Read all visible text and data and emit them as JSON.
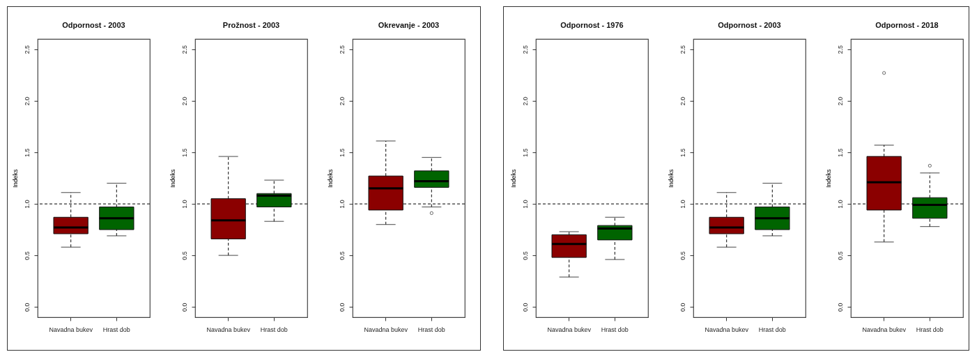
{
  "chart_data": [
    {
      "type": "box",
      "title": "Odpornost - 2003",
      "ylabel": "Indeks",
      "categories": [
        "Navadna bukev",
        "Hrast dob"
      ],
      "colors": [
        "#8b0000",
        "#006400"
      ],
      "boxes": [
        {
          "low": 0.58,
          "q1": 0.71,
          "median": 0.77,
          "q3": 0.87,
          "high": 1.11
        },
        {
          "low": 0.69,
          "q1": 0.75,
          "median": 0.86,
          "q3": 0.97,
          "high": 1.2
        }
      ],
      "ylim": [
        -0.1,
        2.6
      ],
      "yticks": [
        {
          "value": 0,
          "label": "0.0"
        },
        {
          "value": 0.5,
          "label": "0.5"
        },
        {
          "value": 1,
          "label": "1.0"
        },
        {
          "value": 1.5,
          "label": "1.5"
        },
        {
          "value": 2,
          "label": "2.0"
        },
        {
          "value": 2.5,
          "label": "2.5"
        }
      ],
      "ref_lines": [
        {
          "axis": "y",
          "value": 1,
          "line_style": "dashed"
        }
      ]
    },
    {
      "type": "box",
      "title": "Prožnost - 2003",
      "ylabel": "Indeks",
      "categories": [
        "Navadna bukev",
        "Hrast dob"
      ],
      "colors": [
        "#8b0000",
        "#006400"
      ],
      "boxes": [
        {
          "low": 0.5,
          "q1": 0.66,
          "median": 0.84,
          "q3": 1.05,
          "high": 1.46
        },
        {
          "low": 0.83,
          "q1": 0.97,
          "median": 1.08,
          "q3": 1.1,
          "high": 1.23
        }
      ],
      "ylim": [
        -0.1,
        2.6
      ],
      "yticks": [
        {
          "value": 0,
          "label": "0.0"
        },
        {
          "value": 0.5,
          "label": "0.5"
        },
        {
          "value": 1,
          "label": "1.0"
        },
        {
          "value": 1.5,
          "label": "1.5"
        },
        {
          "value": 2,
          "label": "2.0"
        },
        {
          "value": 2.5,
          "label": "2.5"
        }
      ],
      "ref_lines": [
        {
          "axis": "y",
          "value": 1,
          "line_style": "dashed"
        }
      ]
    },
    {
      "type": "box",
      "title": "Okrevanje - 2003",
      "ylabel": "Indeks",
      "categories": [
        "Navadna bukev",
        "Hrast dob"
      ],
      "colors": [
        "#8b0000",
        "#006400"
      ],
      "boxes": [
        {
          "low": 0.8,
          "q1": 0.94,
          "median": 1.15,
          "q3": 1.27,
          "high": 1.61
        },
        {
          "low": 0.97,
          "q1": 1.16,
          "median": 1.22,
          "q3": 1.32,
          "high": 1.45,
          "outliers": [
            0.91
          ]
        }
      ],
      "ylim": [
        -0.1,
        2.6
      ],
      "yticks": [
        {
          "value": 0,
          "label": "0.0"
        },
        {
          "value": 0.5,
          "label": "0.5"
        },
        {
          "value": 1,
          "label": "1.0"
        },
        {
          "value": 1.5,
          "label": "1.5"
        },
        {
          "value": 2,
          "label": "2.0"
        },
        {
          "value": 2.5,
          "label": "2.5"
        }
      ],
      "ref_lines": [
        {
          "axis": "y",
          "value": 1,
          "line_style": "dashed"
        }
      ]
    },
    {
      "type": "box",
      "title": "Odpornost - 1976",
      "ylabel": "Indeks",
      "categories": [
        "Navadna bukev",
        "Hrast dob"
      ],
      "colors": [
        "#8b0000",
        "#006400"
      ],
      "boxes": [
        {
          "low": 0.29,
          "q1": 0.48,
          "median": 0.61,
          "q3": 0.7,
          "high": 0.73
        },
        {
          "low": 0.46,
          "q1": 0.65,
          "median": 0.76,
          "q3": 0.79,
          "high": 0.87
        }
      ],
      "ylim": [
        -0.1,
        2.6
      ],
      "yticks": [
        {
          "value": 0,
          "label": "0.0"
        },
        {
          "value": 0.5,
          "label": "0.5"
        },
        {
          "value": 1,
          "label": "1.0"
        },
        {
          "value": 1.5,
          "label": "1.5"
        },
        {
          "value": 2,
          "label": "2.0"
        },
        {
          "value": 2.5,
          "label": "2.5"
        }
      ],
      "ref_lines": [
        {
          "axis": "y",
          "value": 1,
          "line_style": "dashed"
        }
      ]
    },
    {
      "type": "box",
      "title": "Odpornost - 2003",
      "ylabel": "Indeks",
      "categories": [
        "Navadna bukev",
        "Hrast dob"
      ],
      "colors": [
        "#8b0000",
        "#006400"
      ],
      "boxes": [
        {
          "low": 0.58,
          "q1": 0.71,
          "median": 0.77,
          "q3": 0.87,
          "high": 1.11
        },
        {
          "low": 0.69,
          "q1": 0.75,
          "median": 0.86,
          "q3": 0.97,
          "high": 1.2
        }
      ],
      "ylim": [
        -0.1,
        2.6
      ],
      "yticks": [
        {
          "value": 0,
          "label": "0.0"
        },
        {
          "value": 0.5,
          "label": "0.5"
        },
        {
          "value": 1,
          "label": "1.0"
        },
        {
          "value": 1.5,
          "label": "1.5"
        },
        {
          "value": 2,
          "label": "2.0"
        },
        {
          "value": 2.5,
          "label": "2.5"
        }
      ],
      "ref_lines": [
        {
          "axis": "y",
          "value": 1,
          "line_style": "dashed"
        }
      ]
    },
    {
      "type": "box",
      "title": "Odpornost - 2018",
      "ylabel": "Indeks",
      "categories": [
        "Navadna bukev",
        "Hrast dob"
      ],
      "colors": [
        "#8b0000",
        "#006400"
      ],
      "boxes": [
        {
          "low": 0.63,
          "q1": 0.94,
          "median": 1.21,
          "q3": 1.46,
          "high": 1.57,
          "outliers": [
            2.27
          ]
        },
        {
          "low": 0.78,
          "q1": 0.86,
          "median": 0.99,
          "q3": 1.06,
          "high": 1.3,
          "outliers": [
            1.37
          ]
        }
      ],
      "ylim": [
        -0.1,
        2.6
      ],
      "yticks": [
        {
          "value": 0,
          "label": "0.0"
        },
        {
          "value": 0.5,
          "label": "0.5"
        },
        {
          "value": 1,
          "label": "1.0"
        },
        {
          "value": 1.5,
          "label": "1.5"
        },
        {
          "value": 2,
          "label": "2.0"
        },
        {
          "value": 2.5,
          "label": "2.5"
        }
      ],
      "ref_lines": [
        {
          "axis": "y",
          "value": 1,
          "line_style": "dashed"
        }
      ]
    }
  ]
}
